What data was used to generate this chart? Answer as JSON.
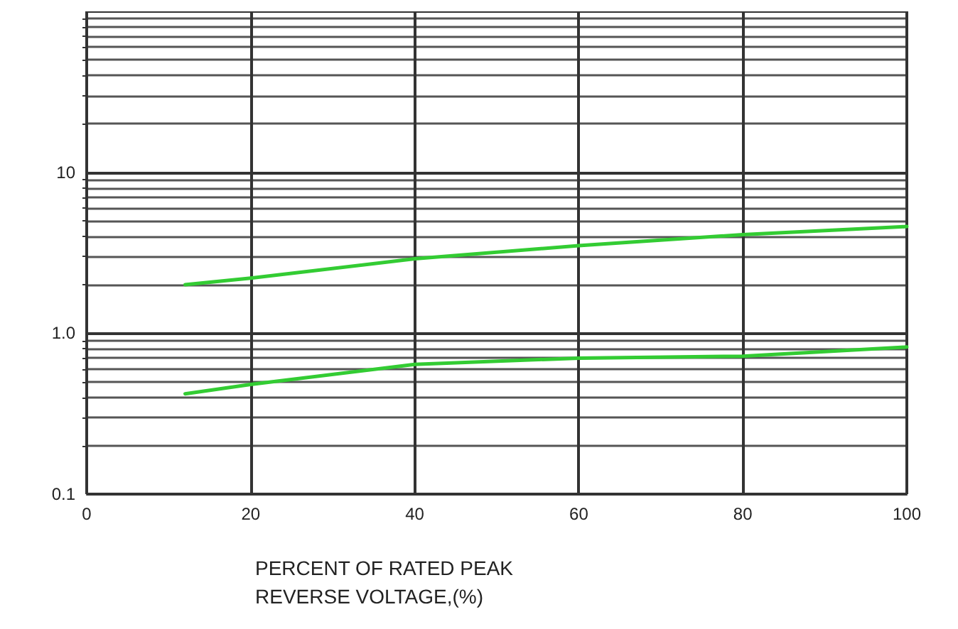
{
  "chart_data": {
    "type": "line",
    "xlabel": "PERCENT OF RATED PEAK\nREVERSE VOLTAGE,(%)",
    "xlim": [
      0,
      100
    ],
    "xticks": [
      0,
      20,
      40,
      60,
      80,
      100
    ],
    "ylim": [
      0.1,
      100
    ],
    "yticks": [
      0.1,
      {
        "value": 1,
        "label": "1.0"
      },
      10,
      {
        "value": 100,
        "label": null
      }
    ],
    "log": "y",
    "grid": true,
    "marker": "none",
    "line_style": "solid",
    "series": [
      {
        "color": "#33cc33",
        "x": [
          12,
          20,
          40,
          60,
          80,
          100
        ],
        "values": [
          2.0,
          2.2,
          2.9,
          3.5,
          4.1,
          4.6
        ]
      },
      {
        "color": "#33cc33",
        "x": [
          12,
          20,
          40,
          60,
          80,
          100
        ],
        "values": [
          0.42,
          0.48,
          0.64,
          0.7,
          0.72,
          0.82
        ]
      }
    ]
  }
}
